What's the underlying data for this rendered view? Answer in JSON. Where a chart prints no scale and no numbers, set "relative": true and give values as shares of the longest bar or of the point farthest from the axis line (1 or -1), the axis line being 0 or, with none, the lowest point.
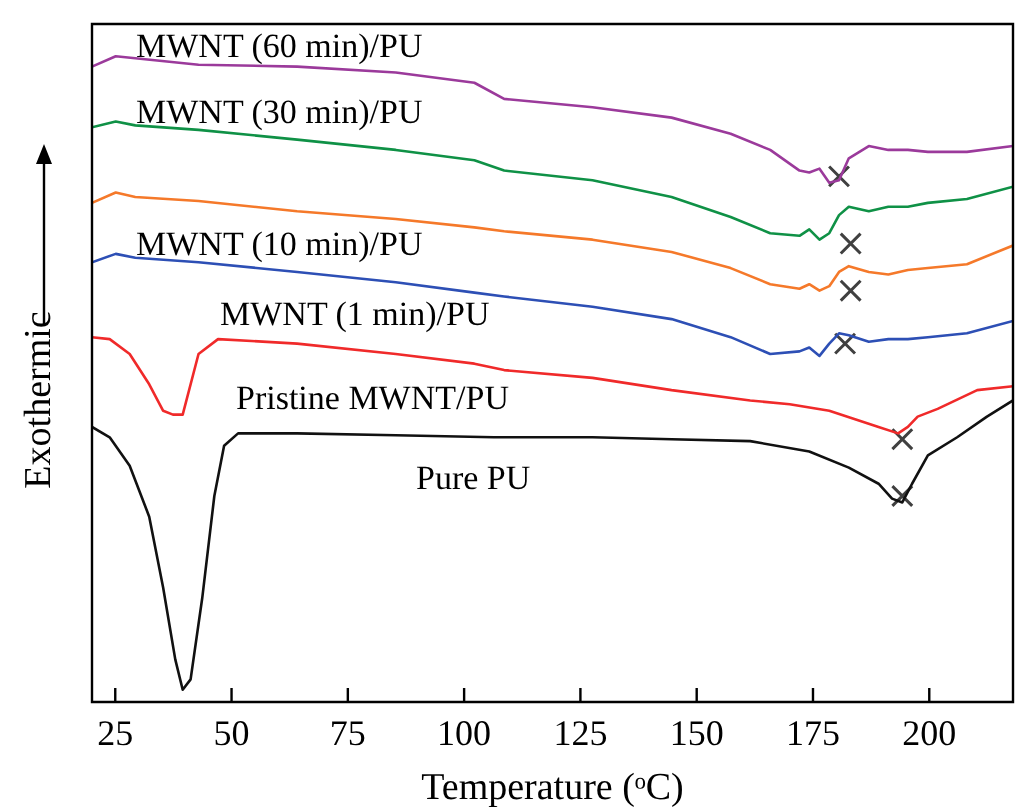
{
  "chart_data": {
    "type": "line",
    "relative": true,
    "xlabel": "Temperature (ᵒC)",
    "ylabel": "Exothermic",
    "xlim": [
      20,
      218
    ],
    "xticks": [
      25,
      50,
      75,
      100,
      125,
      150,
      175,
      200
    ],
    "grid": false,
    "legend": false,
    "marker": "none",
    "line_style": "solid",
    "series": [
      {
        "name": "MWNT (60 min)/PU",
        "color": "#9b3a9b",
        "x": [
          20,
          25.1,
          29.3,
          42.9,
          64.1,
          85.3,
          102.2,
          108.6,
          127.6,
          144.6,
          157.3,
          165.8,
          172.1,
          174.2,
          176.4,
          178.5,
          180.6,
          182.7,
          187,
          191.2,
          195.4,
          199.7,
          208.1,
          218
        ],
        "values": [
          0.984,
          1.0,
          0.997,
          0.987,
          0.984,
          0.975,
          0.959,
          0.934,
          0.921,
          0.905,
          0.88,
          0.855,
          0.823,
          0.82,
          0.826,
          0.804,
          0.808,
          0.842,
          0.861,
          0.855,
          0.855,
          0.852,
          0.852,
          0.861
        ]
      },
      {
        "name": "MWNT (30 min)/PU",
        "color": "#0f9146",
        "x": [
          20,
          25.1,
          29.3,
          42.9,
          64.1,
          85.3,
          102.2,
          108.6,
          127.6,
          144.6,
          157.3,
          165.8,
          172.1,
          174.2,
          176.4,
          178.5,
          180.6,
          182.7,
          187,
          191.2,
          195.4,
          199.7,
          208.1,
          218
        ],
        "values": [
          0.89,
          0.899,
          0.893,
          0.886,
          0.871,
          0.855,
          0.839,
          0.823,
          0.808,
          0.782,
          0.751,
          0.726,
          0.722,
          0.732,
          0.716,
          0.726,
          0.754,
          0.767,
          0.76,
          0.767,
          0.767,
          0.773,
          0.779,
          0.798
        ]
      },
      {
        "name": "MWNT (10 min)/PU",
        "color": "#f5792a",
        "x": [
          20,
          25.1,
          29.3,
          42.9,
          64.1,
          85.3,
          102.2,
          108.6,
          127.6,
          144.6,
          157.3,
          165.8,
          172.1,
          174.2,
          176.4,
          178.5,
          180.6,
          182.7,
          187,
          191.2,
          195.4,
          199.7,
          208.1,
          218
        ],
        "values": [
          0.773,
          0.789,
          0.782,
          0.776,
          0.76,
          0.748,
          0.735,
          0.729,
          0.716,
          0.697,
          0.672,
          0.647,
          0.64,
          0.647,
          0.637,
          0.644,
          0.666,
          0.675,
          0.666,
          0.662,
          0.669,
          0.672,
          0.678,
          0.707
        ]
      },
      {
        "name": "MWNT (1 min)/PU",
        "color": "#2d4fb5",
        "x": [
          20,
          25.1,
          29.3,
          42.9,
          64.1,
          85.3,
          102.2,
          108.6,
          127.6,
          144.6,
          157.3,
          165.8,
          172.1,
          174.2,
          176.4,
          178.5,
          180.6,
          182.7,
          187,
          191.2,
          195.4,
          199.7,
          208.1,
          218
        ],
        "values": [
          0.681,
          0.694,
          0.688,
          0.681,
          0.666,
          0.65,
          0.634,
          0.628,
          0.612,
          0.593,
          0.565,
          0.539,
          0.543,
          0.549,
          0.536,
          0.555,
          0.571,
          0.568,
          0.558,
          0.562,
          0.562,
          0.565,
          0.571,
          0.59
        ]
      },
      {
        "name": "Pristine MWNT/PU",
        "color": "#f02a2a",
        "x": [
          20,
          23.8,
          28.1,
          32.3,
          35.3,
          37.4,
          39.5,
          42.9,
          47.1,
          64.1,
          85.3,
          102.2,
          108.6,
          127.6,
          144.6,
          161.5,
          170,
          178.5,
          189.1,
          193.3,
          195.4,
          197.5,
          201.8,
          210.3,
          218
        ],
        "values": [
          0.565,
          0.562,
          0.539,
          0.492,
          0.451,
          0.445,
          0.445,
          0.539,
          0.562,
          0.555,
          0.539,
          0.524,
          0.514,
          0.502,
          0.483,
          0.467,
          0.461,
          0.451,
          0.426,
          0.416,
          0.426,
          0.442,
          0.454,
          0.483,
          0.489
        ]
      },
      {
        "name": "Pure PU",
        "color": "#111111",
        "x": [
          20,
          23.8,
          28.1,
          32.3,
          35.3,
          37.9,
          39.5,
          41.2,
          43.7,
          46.3,
          48.4,
          51.4,
          64.1,
          85.3,
          106.4,
          108.6,
          127.6,
          144.6,
          161.5,
          174.2,
          182.7,
          189.1,
          192,
          194.2,
          196.3,
          199.7,
          206,
          212.4,
          218
        ],
        "values": [
          0.426,
          0.41,
          0.366,
          0.287,
          0.177,
          0.066,
          0.019,
          0.035,
          0.161,
          0.319,
          0.397,
          0.416,
          0.416,
          0.413,
          0.41,
          0.41,
          0.41,
          0.407,
          0.404,
          0.388,
          0.363,
          0.338,
          0.315,
          0.309,
          0.338,
          0.382,
          0.41,
          0.442,
          0.467
        ]
      },
      {
        "type": "scatter",
        "color": "#404040",
        "marker": "cross",
        "x": [
          180.6,
          183.1,
          183.1,
          181.9,
          194.2,
          194.2
        ],
        "values": [
          0.814,
          0.71,
          0.637,
          0.555,
          0.407,
          0.319
        ]
      }
    ]
  }
}
